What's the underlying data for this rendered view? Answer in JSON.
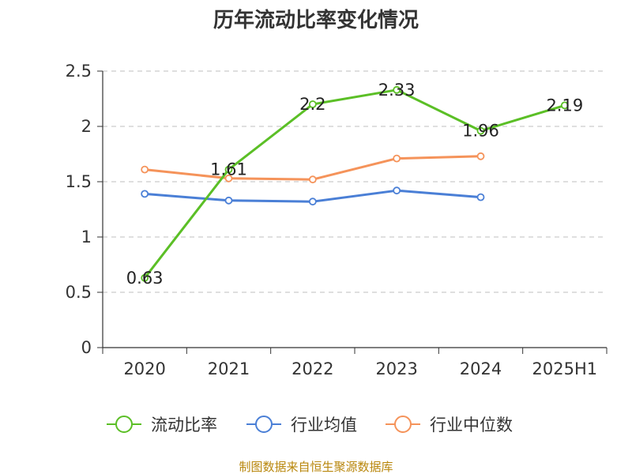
{
  "chart_data": {
    "type": "line",
    "title": "历年流动比率变化情况",
    "categories": [
      "2020",
      "2021",
      "2022",
      "2023",
      "2024",
      "2025H1"
    ],
    "y_ticks": [
      "0",
      "0.5",
      "1",
      "1.5",
      "2",
      "2.5"
    ],
    "ylim": [
      0,
      2.5
    ],
    "grid": true,
    "legend_position": "bottom",
    "series": [
      {
        "name": "流动比率",
        "color": "#5bbf26",
        "values": [
          0.63,
          1.61,
          2.2,
          2.33,
          1.96,
          2.19
        ],
        "labels": [
          "0.63",
          "1.61",
          "2.2",
          "2.33",
          "1.96",
          "2.19"
        ]
      },
      {
        "name": "行业均值",
        "color": "#4a7fd6",
        "values": [
          1.39,
          1.33,
          1.32,
          1.42,
          1.36,
          null
        ]
      },
      {
        "name": "行业中位数",
        "color": "#f5935a",
        "values": [
          1.61,
          1.53,
          1.52,
          1.71,
          1.73,
          null
        ]
      }
    ]
  },
  "source_text": "制图数据来自恒生聚源数据库"
}
